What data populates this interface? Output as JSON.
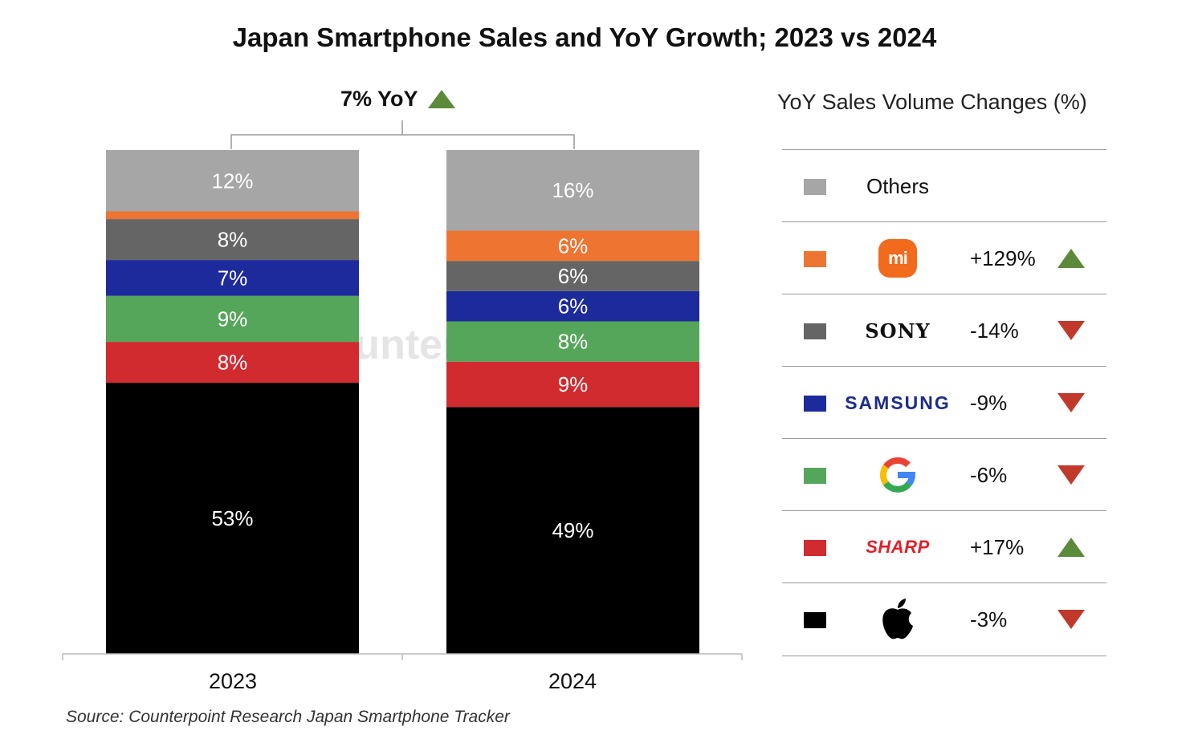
{
  "chart_data": {
    "type": "bar",
    "stacked": true,
    "title": "Japan Smartphone Sales and YoY Growth; 2023 vs 2024",
    "categories": [
      "2023",
      "2024"
    ],
    "series": [
      {
        "brand": "Apple",
        "color": "#000000",
        "values": [
          53,
          49
        ],
        "labels": [
          "53%",
          "49%"
        ]
      },
      {
        "brand": "Sharp",
        "color": "#d12a2f",
        "values": [
          8,
          9
        ],
        "labels": [
          "8%",
          "9%"
        ]
      },
      {
        "brand": "Google",
        "color": "#55a55a",
        "values": [
          9,
          8
        ],
        "labels": [
          "9%",
          "8%"
        ]
      },
      {
        "brand": "Samsung",
        "color": "#1d2a9b",
        "values": [
          7,
          6
        ],
        "labels": [
          "7%",
          "6%"
        ]
      },
      {
        "brand": "Sony",
        "color": "#656565",
        "values": [
          8,
          6
        ],
        "labels": [
          "8%",
          "6%"
        ]
      },
      {
        "brand": "Xiaomi",
        "color": "#ee7431",
        "values": [
          1.5,
          6
        ],
        "labels": [
          "",
          "6%"
        ]
      },
      {
        "brand": "Others",
        "color": "#a6a6a6",
        "values": [
          12,
          16
        ],
        "labels": [
          "12%",
          "16%"
        ]
      }
    ],
    "annotation": "7% YoY",
    "legend_title": "YoY Sales Volume Changes (%)",
    "legend": [
      {
        "brand": "Others",
        "label": "Others",
        "color": "#a6a6a6",
        "change": "",
        "trend": ""
      },
      {
        "brand": "Xiaomi",
        "label": "mi",
        "color": "#ee7431",
        "change": "+129%",
        "trend": "up"
      },
      {
        "brand": "Sony",
        "label": "SONY",
        "color": "#656565",
        "change": "-14%",
        "trend": "down"
      },
      {
        "brand": "Samsung",
        "label": "SAMSUNG",
        "color": "#1d2a9b",
        "change": "-9%",
        "trend": "down"
      },
      {
        "brand": "Google",
        "label": "",
        "color": "#55a55a",
        "change": "-6%",
        "trend": "down"
      },
      {
        "brand": "Sharp",
        "label": "SHARP",
        "color": "#d12a2f",
        "change": "+17%",
        "trend": "up"
      },
      {
        "brand": "Apple",
        "label": "",
        "color": "#000000",
        "change": "-3%",
        "trend": "down"
      }
    ],
    "colors": {
      "up": "#5a8a3a",
      "down": "#c0392b"
    }
  },
  "watermark": "Counterpoint",
  "source": "Source: Counterpoint Research Japan Smartphone Tracker"
}
